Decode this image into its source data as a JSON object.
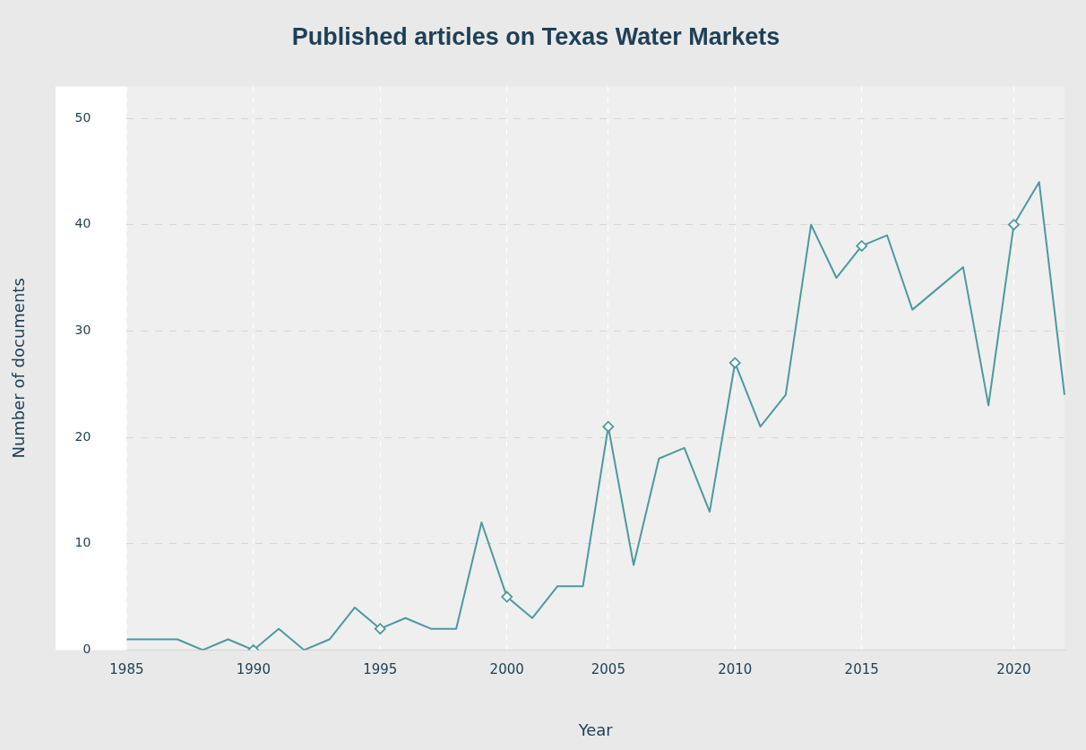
{
  "chart_data": {
    "type": "line",
    "title": "Published articles on Texas Water Markets",
    "xlabel": "Year",
    "ylabel": "Number of documents",
    "categories": [
      "1985",
      null,
      null,
      null,
      null,
      "1990",
      null,
      null,
      null,
      null,
      "1995",
      null,
      null,
      null,
      null,
      "2000",
      null,
      null,
      null,
      "2005",
      null,
      null,
      null,
      null,
      "2010",
      null,
      null,
      null,
      null,
      "2015",
      null,
      null,
      null,
      null,
      null,
      "2020",
      null,
      null
    ],
    "series": [
      {
        "color": "#4b9a9f",
        "marker": "none",
        "values": [
          1,
          1,
          1,
          0,
          1,
          0,
          2,
          0,
          1,
          4,
          2,
          3,
          2,
          2,
          12,
          5,
          3,
          6,
          6,
          21,
          8,
          18,
          19,
          13,
          27,
          21,
          24,
          40,
          35,
          38,
          39,
          32,
          34,
          36,
          23,
          40,
          44,
          24
        ]
      },
      {
        "type": "scatter",
        "color": "#4b9a9f",
        "marker": "diamond",
        "values": [
          null,
          null,
          null,
          null,
          null,
          0,
          null,
          null,
          null,
          null,
          2,
          null,
          null,
          null,
          null,
          5,
          null,
          null,
          null,
          21,
          null,
          null,
          null,
          null,
          27,
          null,
          null,
          null,
          null,
          38,
          null,
          null,
          null,
          null,
          null,
          40,
          null,
          null
        ]
      }
    ],
    "ylim": [
      0,
      53
    ],
    "yticks": [
      0,
      10,
      20,
      30,
      40,
      50
    ],
    "grid": true,
    "legend": false
  }
}
